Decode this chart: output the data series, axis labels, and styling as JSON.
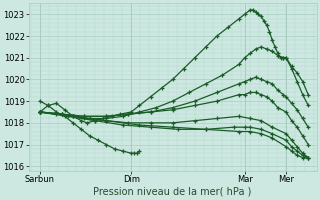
{
  "title": "Pression niveau de la mer( hPa )",
  "bg_color": "#cce8e0",
  "plot_bg_color": "#cce8e0",
  "grid_major_color": "#a8ccc4",
  "grid_minor_color": "#b8d8d0",
  "line_color": "#1a5c28",
  "ylim": [
    1015.8,
    1023.5
  ],
  "yticks": [
    1016,
    1017,
    1018,
    1019,
    1020,
    1021,
    1022,
    1023
  ],
  "xlim": [
    0.0,
    1.04
  ],
  "xtick_labels": [
    "Sarbun",
    "Dim",
    "Mar",
    "Mer"
  ],
  "xtick_positions": [
    0.04,
    0.37,
    0.78,
    0.93
  ],
  "day_vlines": [
    0.04,
    0.37,
    0.78,
    0.93
  ],
  "series": [
    {
      "x": [
        0.04,
        0.07,
        0.1,
        0.13,
        0.16,
        0.19,
        0.21,
        0.24,
        0.27,
        0.3,
        0.33,
        0.37,
        0.4,
        0.44,
        0.48,
        0.52,
        0.56,
        0.6,
        0.64,
        0.68,
        0.72,
        0.76,
        0.78,
        0.8,
        0.81,
        0.82,
        0.83,
        0.84,
        0.85,
        0.86,
        0.87,
        0.88,
        0.89,
        0.9,
        0.91,
        0.92,
        0.93,
        0.95,
        0.97,
        0.99,
        1.01
      ],
      "y": [
        1018.5,
        1018.8,
        1018.9,
        1018.6,
        1018.3,
        1018.1,
        1018.0,
        1018.1,
        1018.2,
        1018.3,
        1018.4,
        1018.5,
        1018.8,
        1019.2,
        1019.6,
        1020.0,
        1020.5,
        1021.0,
        1021.5,
        1022.0,
        1022.4,
        1022.8,
        1023.0,
        1023.2,
        1023.2,
        1023.1,
        1023.0,
        1022.9,
        1022.7,
        1022.5,
        1022.2,
        1021.8,
        1021.5,
        1021.2,
        1021.0,
        1021.0,
        1021.0,
        1020.6,
        1020.3,
        1019.9,
        1019.3
      ]
    },
    {
      "x": [
        0.04,
        0.1,
        0.16,
        0.22,
        0.28,
        0.34,
        0.4,
        0.46,
        0.52,
        0.58,
        0.64,
        0.7,
        0.76,
        0.78,
        0.8,
        0.82,
        0.84,
        0.86,
        0.88,
        0.9,
        0.92,
        0.93,
        0.95,
        0.97,
        0.99,
        1.01
      ],
      "y": [
        1018.5,
        1018.4,
        1018.3,
        1018.2,
        1018.2,
        1018.3,
        1018.5,
        1018.7,
        1019.0,
        1019.4,
        1019.8,
        1020.2,
        1020.7,
        1021.0,
        1021.2,
        1021.4,
        1021.5,
        1021.4,
        1021.3,
        1021.1,
        1021.0,
        1021.0,
        1020.5,
        1019.9,
        1019.3,
        1018.8
      ]
    },
    {
      "x": [
        0.04,
        0.12,
        0.2,
        0.28,
        0.36,
        0.44,
        0.52,
        0.6,
        0.68,
        0.76,
        0.78,
        0.8,
        0.82,
        0.84,
        0.86,
        0.88,
        0.9,
        0.92,
        0.93,
        0.95,
        0.97,
        0.99,
        1.01
      ],
      "y": [
        1018.5,
        1018.4,
        1018.3,
        1018.3,
        1018.4,
        1018.5,
        1018.7,
        1019.0,
        1019.4,
        1019.8,
        1019.9,
        1020.0,
        1020.1,
        1020.0,
        1019.9,
        1019.8,
        1019.5,
        1019.3,
        1019.2,
        1018.9,
        1018.6,
        1018.2,
        1017.8
      ]
    },
    {
      "x": [
        0.04,
        0.12,
        0.2,
        0.28,
        0.36,
        0.44,
        0.52,
        0.6,
        0.68,
        0.76,
        0.78,
        0.8,
        0.82,
        0.84,
        0.86,
        0.88,
        0.9,
        0.93,
        0.95,
        0.97,
        0.99,
        1.01
      ],
      "y": [
        1018.5,
        1018.4,
        1018.3,
        1018.3,
        1018.4,
        1018.5,
        1018.6,
        1018.8,
        1019.0,
        1019.3,
        1019.3,
        1019.4,
        1019.4,
        1019.3,
        1019.2,
        1019.0,
        1018.7,
        1018.5,
        1018.1,
        1017.8,
        1017.4,
        1017.0
      ]
    },
    {
      "x": [
        0.04,
        0.12,
        0.2,
        0.28,
        0.36,
        0.44,
        0.52,
        0.6,
        0.68,
        0.76,
        0.8,
        0.84,
        0.88,
        0.93,
        0.95,
        0.97,
        0.99,
        1.01
      ],
      "y": [
        1018.5,
        1018.4,
        1018.2,
        1018.1,
        1018.0,
        1018.0,
        1018.0,
        1018.1,
        1018.2,
        1018.3,
        1018.2,
        1018.1,
        1017.8,
        1017.5,
        1017.2,
        1016.9,
        1016.6,
        1016.4
      ]
    },
    {
      "x": [
        0.04,
        0.14,
        0.24,
        0.34,
        0.44,
        0.54,
        0.64,
        0.74,
        0.78,
        0.8,
        0.84,
        0.88,
        0.93,
        0.95,
        0.97,
        0.99,
        1.01
      ],
      "y": [
        1018.5,
        1018.3,
        1018.1,
        1017.9,
        1017.8,
        1017.7,
        1017.7,
        1017.8,
        1017.8,
        1017.8,
        1017.7,
        1017.5,
        1017.2,
        1016.9,
        1016.7,
        1016.5,
        1016.4
      ]
    },
    {
      "x": [
        0.04,
        0.16,
        0.28,
        0.4,
        0.52,
        0.64,
        0.76,
        0.8,
        0.84,
        0.88,
        0.93,
        0.95,
        0.97,
        0.99,
        1.01
      ],
      "y": [
        1018.5,
        1018.3,
        1018.1,
        1017.9,
        1017.8,
        1017.7,
        1017.6,
        1017.6,
        1017.5,
        1017.3,
        1016.9,
        1016.7,
        1016.5,
        1016.4,
        1016.4
      ]
    },
    {
      "x": [
        0.04,
        0.07,
        0.1,
        0.13,
        0.16,
        0.19,
        0.22,
        0.25,
        0.28,
        0.31,
        0.34,
        0.37,
        0.38,
        0.39,
        0.4
      ],
      "y": [
        1019.0,
        1018.8,
        1018.5,
        1018.3,
        1018.0,
        1017.7,
        1017.4,
        1017.2,
        1017.0,
        1016.8,
        1016.7,
        1016.6,
        1016.6,
        1016.6,
        1016.7
      ]
    }
  ]
}
